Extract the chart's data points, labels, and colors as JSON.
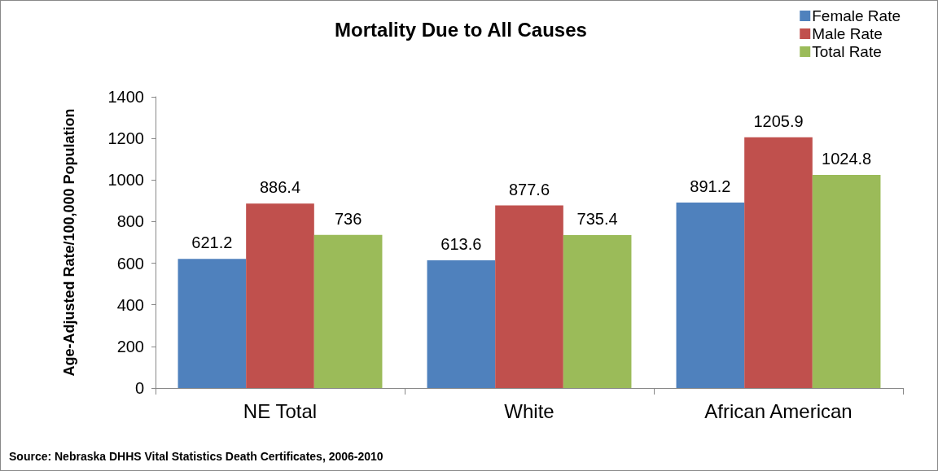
{
  "chart_data": {
    "type": "bar",
    "title": "Mortality Due to All Causes",
    "ylabel": "Age-Adjusted Rate/100,000 Population",
    "categories": [
      "NE Total",
      "White",
      "African American"
    ],
    "series": [
      {
        "name": "Female Rate",
        "color": "#4f81bd",
        "values": [
          621.2,
          613.6,
          891.2
        ]
      },
      {
        "name": "Male Rate",
        "color": "#c0504d",
        "values": [
          886.4,
          877.6,
          1205.9
        ]
      },
      {
        "name": "Total Rate",
        "color": "#9bbb59",
        "values": [
          736,
          735.4,
          1024.8
        ]
      }
    ],
    "ylim": [
      0,
      1400
    ],
    "yticks": [
      0,
      200,
      400,
      600,
      800,
      1000,
      1200,
      1400
    ],
    "grid": false,
    "legend": "top right",
    "data_labels": true,
    "annotations": [
      "Source: Nebraska DHHS Vital Statistics Death Certificates, 2006-2010"
    ]
  }
}
